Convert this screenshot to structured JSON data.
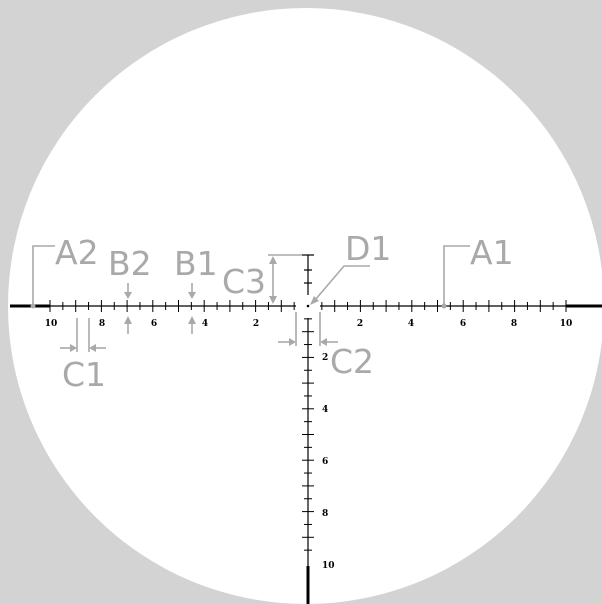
{
  "colors": {
    "background": "#d3d3d3",
    "field": "#ffffff",
    "reticle": "#000000",
    "annotation": "#a9a9a9"
  },
  "reticle": {
    "h_left_labels": [
      "10",
      "8",
      "6",
      "4",
      "2"
    ],
    "h_right_labels": [
      "2",
      "4",
      "6",
      "8",
      "10"
    ],
    "v_labels": [
      "2",
      "4",
      "6",
      "8",
      "10"
    ]
  },
  "annotations": {
    "a1": "A1",
    "a2": "A2",
    "b1": "B1",
    "b2": "B2",
    "c1": "C1",
    "c2": "C2",
    "c3": "C3",
    "d1": "D1"
  }
}
